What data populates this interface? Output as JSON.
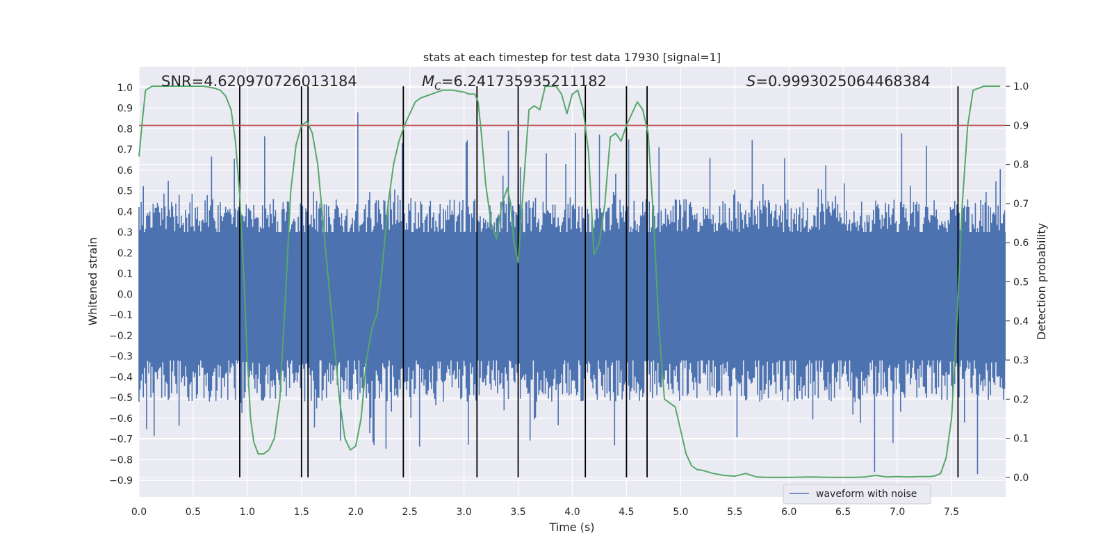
{
  "chart_data": {
    "type": "line",
    "title": "stats at each timestep for test data 17930 [signal=1]",
    "xlabel": "Time (s)",
    "ylabel_left": "Whitened strain",
    "ylabel_right": "Detection probability",
    "xlim": [
      0,
      8
    ],
    "ylim_left": [
      -0.98,
      1.1
    ],
    "ylim_right": [
      -0.05,
      1.05
    ],
    "x_ticks": [
      "0.0",
      "0.5",
      "1.0",
      "1.5",
      "2.0",
      "2.5",
      "3.0",
      "3.5",
      "4.0",
      "4.5",
      "5.0",
      "5.5",
      "6.0",
      "6.5",
      "7.0",
      "7.5"
    ],
    "y_ticks_left": [
      "-0.9",
      "-0.8",
      "-0.7",
      "-0.6",
      "-0.5",
      "-0.4",
      "-0.3",
      "-0.2",
      "-0.1",
      "0.0",
      "0.1",
      "0.2",
      "0.3",
      "0.4",
      "0.5",
      "0.6",
      "0.7",
      "0.8",
      "0.9",
      "1.0"
    ],
    "y_ticks_right": [
      "0.0",
      "0.1",
      "0.2",
      "0.3",
      "0.4",
      "0.5",
      "0.6",
      "0.7",
      "0.8",
      "0.9",
      "1.0"
    ],
    "annotations": {
      "snr": "SNR=4.620970726013184",
      "mc_symbol": "M",
      "mc_sub": "C",
      "mc_value": "=6.241735935211182",
      "s_symbol": "S",
      "s_value": "=0.9993025064468384"
    },
    "legend": {
      "label": "waveform with noise",
      "location": "lower right"
    },
    "threshold": {
      "value": 0.9,
      "axis": "right",
      "color": "#c44e52"
    },
    "vertical_lines": [
      0.93,
      1.5,
      1.56,
      2.44,
      3.12,
      3.5,
      4.12,
      4.5,
      4.69,
      7.56
    ],
    "colors": {
      "waveform": "#4c72b0",
      "probability": "#55a868",
      "threshold": "#c44e52",
      "vlines": "#000000",
      "background": "#eaeaf2"
    },
    "waveform": {
      "name": "waveform with noise",
      "samples": 800,
      "typical_range": [
        -0.32,
        0.3
      ],
      "extreme_range": [
        -0.87,
        0.88
      ]
    },
    "series": [
      {
        "name": "detection probability",
        "axis": "right",
        "x": [
          0.0,
          0.03,
          0.06,
          0.12,
          0.2,
          0.3,
          0.4,
          0.5,
          0.6,
          0.7,
          0.75,
          0.8,
          0.85,
          0.89,
          0.93,
          0.97,
          1.0,
          1.03,
          1.06,
          1.1,
          1.15,
          1.2,
          1.25,
          1.3,
          1.35,
          1.4,
          1.45,
          1.5,
          1.55,
          1.6,
          1.65,
          1.7,
          1.75,
          1.8,
          1.85,
          1.9,
          1.95,
          2.0,
          2.05,
          2.1,
          2.15,
          2.2,
          2.25,
          2.3,
          2.35,
          2.4,
          2.45,
          2.5,
          2.55,
          2.6,
          2.7,
          2.8,
          2.9,
          3.0,
          3.05,
          3.1,
          3.13,
          3.16,
          3.2,
          3.25,
          3.3,
          3.35,
          3.4,
          3.43,
          3.46,
          3.5,
          3.55,
          3.6,
          3.65,
          3.7,
          3.75,
          3.8,
          3.85,
          3.9,
          3.95,
          4.0,
          4.05,
          4.1,
          4.15,
          4.2,
          4.25,
          4.3,
          4.35,
          4.4,
          4.45,
          4.5,
          4.55,
          4.6,
          4.65,
          4.7,
          4.75,
          4.8,
          4.85,
          4.9,
          4.95,
          5.0,
          5.05,
          5.1,
          5.15,
          5.2,
          5.3,
          5.4,
          5.5,
          5.6,
          5.7,
          5.8,
          6.0,
          6.2,
          6.4,
          6.6,
          6.7,
          6.8,
          6.9,
          7.0,
          7.1,
          7.2,
          7.3,
          7.35,
          7.4,
          7.45,
          7.5,
          7.55,
          7.6,
          7.65,
          7.7,
          7.8,
          7.9,
          7.95
        ],
        "values": [
          0.82,
          0.91,
          0.99,
          1.0,
          1.0,
          1.0,
          1.0,
          1.0,
          1.0,
          0.995,
          0.99,
          0.975,
          0.94,
          0.86,
          0.72,
          0.5,
          0.3,
          0.15,
          0.09,
          0.06,
          0.06,
          0.07,
          0.1,
          0.2,
          0.45,
          0.73,
          0.85,
          0.9,
          0.91,
          0.88,
          0.8,
          0.65,
          0.5,
          0.35,
          0.2,
          0.1,
          0.07,
          0.08,
          0.15,
          0.3,
          0.38,
          0.42,
          0.55,
          0.7,
          0.8,
          0.86,
          0.9,
          0.93,
          0.96,
          0.97,
          0.98,
          0.99,
          0.99,
          0.985,
          0.98,
          0.98,
          0.96,
          0.88,
          0.75,
          0.65,
          0.61,
          0.7,
          0.74,
          0.7,
          0.6,
          0.55,
          0.75,
          0.94,
          0.95,
          0.94,
          1.0,
          1.0,
          1.0,
          0.98,
          0.93,
          0.98,
          0.99,
          0.94,
          0.83,
          0.57,
          0.6,
          0.7,
          0.87,
          0.88,
          0.86,
          0.9,
          0.93,
          0.96,
          0.94,
          0.88,
          0.66,
          0.38,
          0.2,
          0.19,
          0.18,
          0.12,
          0.06,
          0.03,
          0.02,
          0.018,
          0.01,
          0.005,
          0.003,
          0.01,
          0.001,
          0.0,
          0.0,
          0.001,
          0.0,
          0.0,
          0.001,
          0.005,
          0.001,
          0.002,
          0.001,
          0.002,
          0.002,
          0.004,
          0.01,
          0.05,
          0.15,
          0.4,
          0.7,
          0.9,
          0.99,
          1.0,
          1.0,
          1.0
        ]
      }
    ]
  }
}
